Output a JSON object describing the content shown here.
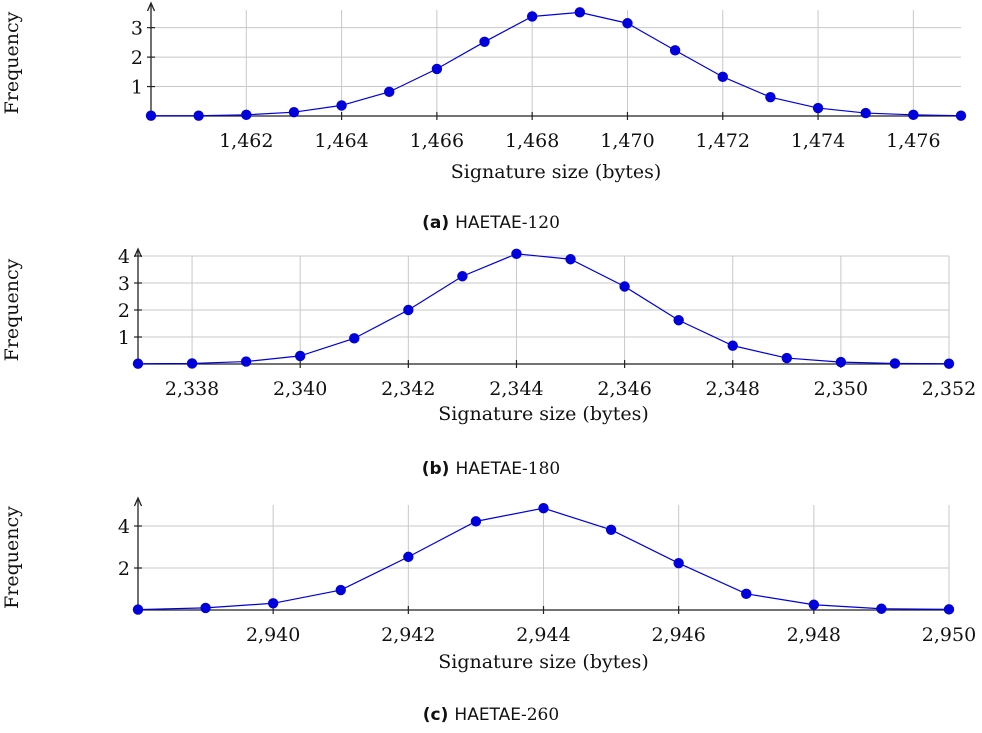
{
  "colors": {
    "series": "#0000dd",
    "grid": "#c8c8c8",
    "axis": "#222222"
  },
  "chart_data": [
    {
      "type": "line",
      "caption_tag": "(a)",
      "caption_name": "HAETAE",
      "caption_num": "-120",
      "xlabel": "Signature size (bytes)",
      "ylabel": "Frequency",
      "xlim": [
        1460,
        1477
      ],
      "ylim": [
        0,
        3.6
      ],
      "x_ticks": [
        1462,
        1464,
        1466,
        1468,
        1470,
        1472,
        1474,
        1476
      ],
      "x_tick_labels": [
        "1,462",
        "1,464",
        "1,466",
        "1,468",
        "1,470",
        "1,472",
        "1,474",
        "1,476"
      ],
      "y_ticks": [
        1,
        2,
        3
      ],
      "y_tick_labels": [
        "1",
        "2",
        "3"
      ],
      "grid": true,
      "series": [
        {
          "x": [
            1460,
            1461,
            1462,
            1463,
            1464,
            1465,
            1466,
            1467,
            1468,
            1469,
            1470,
            1471,
            1472,
            1473,
            1474,
            1475,
            1476,
            1477
          ],
          "values": [
            0.01,
            0.01,
            0.04,
            0.13,
            0.36,
            0.82,
            1.6,
            2.52,
            3.38,
            3.52,
            3.15,
            2.23,
            1.33,
            0.64,
            0.27,
            0.1,
            0.04,
            0.01
          ]
        }
      ]
    },
    {
      "type": "line",
      "caption_tag": "(b)",
      "caption_name": "HAETAE",
      "caption_num": "-180",
      "xlabel": "Signature size (bytes)",
      "ylabel": "Frequency",
      "xlim": [
        2337,
        2352
      ],
      "ylim": [
        0,
        4
      ],
      "x_ticks": [
        2338,
        2340,
        2342,
        2344,
        2346,
        2348,
        2350,
        2352
      ],
      "x_tick_labels": [
        "2,338",
        "2,340",
        "2,342",
        "2,344",
        "2,346",
        "2,348",
        "2,350",
        "2,352"
      ],
      "y_ticks": [
        1,
        2,
        3,
        4
      ],
      "y_tick_labels": [
        "1",
        "2",
        "3",
        "4"
      ],
      "grid": true,
      "series": [
        {
          "x": [
            2337,
            2338,
            2339,
            2340,
            2341,
            2342,
            2343,
            2344,
            2345,
            2346,
            2347,
            2348,
            2349,
            2350,
            2351,
            2352
          ],
          "values": [
            0.01,
            0.02,
            0.09,
            0.3,
            0.95,
            2.0,
            3.25,
            4.08,
            3.88,
            2.87,
            1.62,
            0.68,
            0.22,
            0.07,
            0.02,
            0.01
          ]
        }
      ]
    },
    {
      "type": "line",
      "caption_tag": "(c)",
      "caption_name": "HAETAE",
      "caption_num": "-260",
      "xlabel": "Signature size (bytes)",
      "ylabel": "Frequency",
      "xlim": [
        2938,
        2950
      ],
      "ylim": [
        0,
        5
      ],
      "x_ticks": [
        2940,
        2942,
        2944,
        2946,
        2948,
        2950
      ],
      "x_tick_labels": [
        "2,940",
        "2,942",
        "2,944",
        "2,946",
        "2,948",
        "2,950"
      ],
      "y_ticks": [
        2,
        4
      ],
      "y_tick_labels": [
        "2",
        "4"
      ],
      "grid": true,
      "series": [
        {
          "x": [
            2938,
            2939,
            2940,
            2941,
            2942,
            2943,
            2944,
            2945,
            2946,
            2947,
            2948,
            2949,
            2950
          ],
          "values": [
            0.02,
            0.1,
            0.32,
            0.95,
            2.53,
            4.22,
            4.85,
            3.82,
            2.23,
            0.77,
            0.25,
            0.06,
            0.03
          ]
        }
      ]
    }
  ]
}
